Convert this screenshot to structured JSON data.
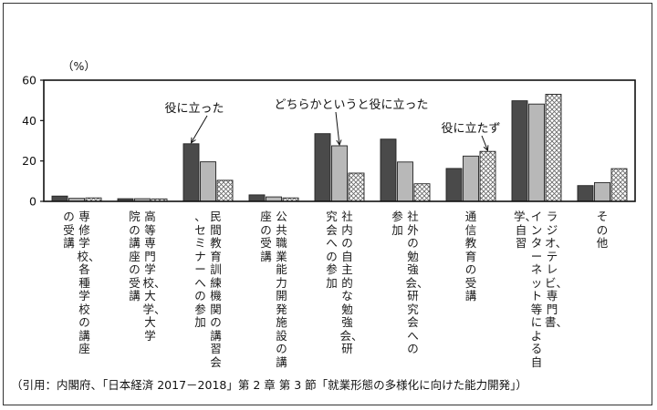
{
  "chart_data": {
    "type": "bar",
    "yunit": "（%）",
    "yticks": [
      0,
      20,
      40,
      60
    ],
    "ylim": [
      0,
      60
    ],
    "grid": false,
    "legend": "none",
    "colors": {
      "series_1": "#4a4a4a",
      "series_2": "#b8b8b8",
      "series_3_pattern": "crosshatch"
    },
    "categories": [
      "専修学校、各種学校の講座の受講",
      "高等専門学校、大学、大学院の講座の受講",
      "民間教育訓練機関の講習会、セミナーへの参加",
      "公共職業能力開発施設の講座の受講",
      "社内の自主的な勉強会、研究会への参加",
      "社外の勉強会、研究会への参加",
      "通信教育の受講",
      "ラジオ、テレビ、専門書、インターネット等による自学、自習",
      "その他"
    ],
    "series": [
      {
        "name": "役に立った",
        "values": [
          2.6,
          1.3,
          28.5,
          3.2,
          33.5,
          30.8,
          16.3,
          49.8,
          7.8
        ]
      },
      {
        "name": "どちらかというと役に立った",
        "values": [
          1.5,
          1.3,
          19.6,
          2.2,
          27.5,
          19.5,
          22.4,
          48.2,
          9.3
        ]
      },
      {
        "name": "役に立たず",
        "values": [
          1.7,
          1.2,
          10.4,
          1.7,
          14.0,
          8.7,
          24.7,
          53.0,
          16.2
        ]
      }
    ],
    "annotations": [
      {
        "text": "役に立った",
        "target_series": 0,
        "target_category": 2
      },
      {
        "text": "どちらかというと役に立った",
        "target_series": 1,
        "target_category": 4
      },
      {
        "text": "役に立たず",
        "target_series": 2,
        "target_category": 6
      }
    ]
  },
  "caption": "（引用：内閣府、「日本経済 2017－2018」第 2 章 第 3 節「就業形態の多様化に向けた能力開発」）"
}
